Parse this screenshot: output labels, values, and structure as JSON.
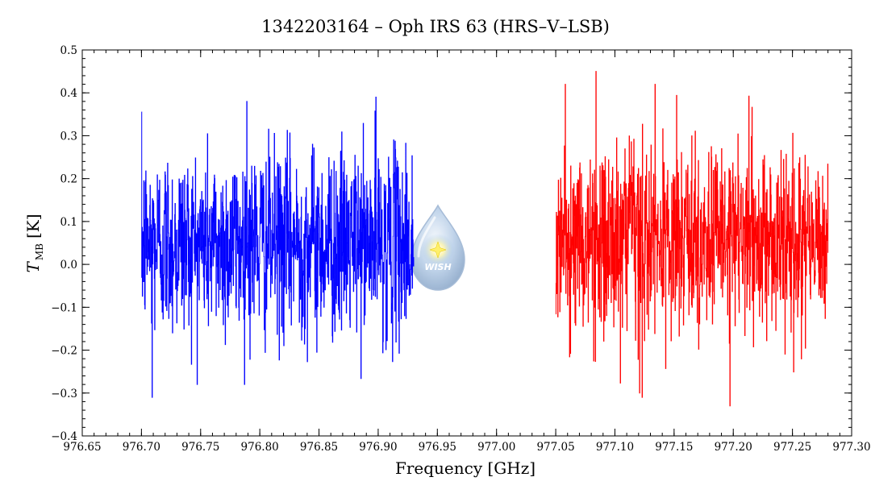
{
  "chart_data": {
    "type": "line",
    "title": "1342203164 – Oph IRS 63 (HRS–V–LSB)",
    "xlabel": "Frequency [GHz]",
    "ylabel": {
      "main": "T",
      "sub": "MB",
      "unit": "[K]"
    },
    "xlim": [
      976.65,
      977.3
    ],
    "ylim": [
      -0.4,
      0.5
    ],
    "xticks": [
      976.65,
      976.7,
      976.75,
      976.8,
      976.85,
      976.9,
      976.95,
      977.0,
      977.05,
      977.1,
      977.15,
      977.2,
      977.25,
      977.3
    ],
    "xtick_labels": [
      "976.65",
      "976.70",
      "976.75",
      "976.80",
      "976.85",
      "976.90",
      "976.95",
      "977.00",
      "977.05",
      "977.10",
      "977.15",
      "977.20",
      "977.25",
      "977.30"
    ],
    "yticks": [
      -0.4,
      -0.3,
      -0.2,
      -0.1,
      0.0,
      0.1,
      0.2,
      0.3,
      0.4,
      0.5
    ],
    "ytick_labels": [
      "−0.4",
      "−0.3",
      "−0.2",
      "−0.1",
      "0.0",
      "0.1",
      "0.2",
      "0.3",
      "0.4",
      "0.5"
    ],
    "grid": false,
    "legend": null,
    "series": [
      {
        "color": "#0000ff",
        "x_range": [
          976.7,
          976.93
        ],
        "noise": {
          "mean": 0.05,
          "std": 0.11,
          "min": -0.31,
          "max": 0.39
        },
        "notable_points": [
          {
            "x": 976.709,
            "y": -0.31
          },
          {
            "x": 976.789,
            "y": 0.38
          },
          {
            "x": 976.898,
            "y": 0.39
          }
        ]
      },
      {
        "color": "#ff0000",
        "x_range": [
          977.05,
          977.28
        ],
        "noise": {
          "mean": 0.05,
          "std": 0.11,
          "min": -0.33,
          "max": 0.45
        },
        "notable_points": [
          {
            "x": 977.084,
            "y": 0.45
          },
          {
            "x": 977.123,
            "y": -0.31
          },
          {
            "x": 977.197,
            "y": -0.33
          }
        ]
      }
    ]
  },
  "watermark": {
    "text": "WISH",
    "color": "#8fb6e0"
  }
}
